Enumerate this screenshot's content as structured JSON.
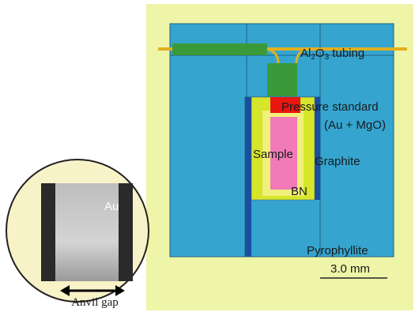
{
  "labels": {
    "tubing": [
      "Al",
      "2",
      "O",
      "3",
      " tubing"
    ],
    "pressure_standard": "Pressure standard",
    "pressure_standard_note": "(Au + MgO)",
    "sample": "Sample",
    "graphite": "Graphite",
    "bn": "BN",
    "pyrophyllite": "Pyrophyllite",
    "scale": "3.0 mm"
  },
  "inset": {
    "au": "Au",
    "anvil_gap": "Anvil gap"
  }
}
